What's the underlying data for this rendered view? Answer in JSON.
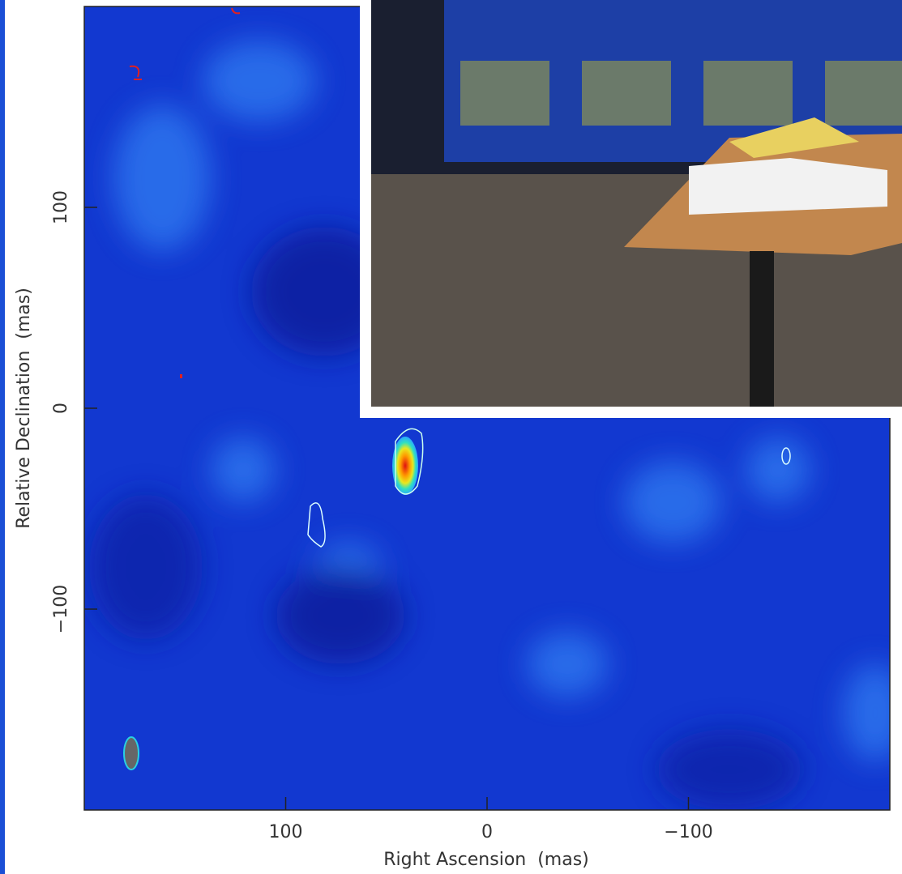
{
  "chart_data": {
    "type": "image",
    "xlabel": "Right Ascension  (mas)",
    "ylabel": "Relative Declination  (mas)",
    "xlim": [
      200,
      -200
    ],
    "ylim": [
      -200,
      200
    ],
    "xticks": [
      100,
      0,
      {
        "value": -100,
        "label": "−100"
      }
    ],
    "yticks": [
      {
        "value": -100,
        "label": "−100"
      },
      0,
      100
    ]
  }
}
